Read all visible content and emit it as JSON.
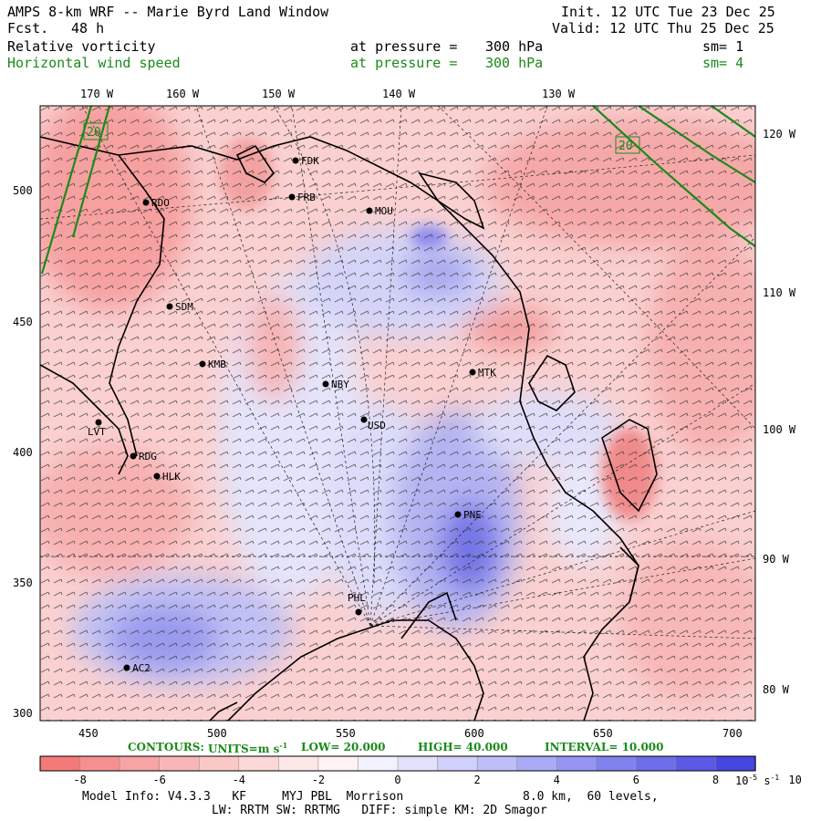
{
  "header": {
    "title": "AMPS 8-km WRF -- Marie Byrd Land Window",
    "fcst_label": "Fcst.",
    "fcst_value": "48 h",
    "init": "Init. 12 UTC Tue 23 Dec 25",
    "valid": "Valid: 12 UTC Thu 25 Dec 25",
    "field1": {
      "name": "Relative vorticity",
      "pressure_label": "at pressure =",
      "pressure": "300 hPa",
      "sm": "sm= 1"
    },
    "field2": {
      "name": "Horizontal wind speed",
      "pressure_label": "at pressure =",
      "pressure": "300 hPa",
      "sm": "sm= 4"
    }
  },
  "map": {
    "top_lon_labels": [
      "170 W",
      "160 W",
      "150 W",
      "140 W",
      "130 W"
    ],
    "right_lon_labels": [
      "120 W",
      "110 W",
      "100 W",
      "90 W",
      "80 W"
    ],
    "left_axis_ticks": [
      "500",
      "450",
      "400",
      "350",
      "300"
    ],
    "bottom_axis_ticks": [
      "450",
      "500",
      "550",
      "600",
      "650",
      "700"
    ],
    "contour_labels": [
      "20",
      "20"
    ],
    "stations": [
      {
        "id": "FDK"
      },
      {
        "id": "FRB"
      },
      {
        "id": "MOU"
      },
      {
        "id": "RDO"
      },
      {
        "id": "SDM"
      },
      {
        "id": "KMB"
      },
      {
        "id": "NBY"
      },
      {
        "id": "MTK"
      },
      {
        "id": "USD"
      },
      {
        "id": "LVT"
      },
      {
        "id": "RDG"
      },
      {
        "id": "HLK"
      },
      {
        "id": "PNE"
      },
      {
        "id": "PHL"
      },
      {
        "id": "AC2"
      }
    ]
  },
  "contours": {
    "label": "CONTOURS:",
    "units": "UNITS=m s",
    "units_sup": "-1",
    "low": "LOW= 20.000",
    "high": "HIGH= 40.000",
    "interval": "INTERVAL= 10.000"
  },
  "colorbar": {
    "ticks": [
      "-8",
      "-6",
      "-4",
      "-2",
      "0",
      "2",
      "4",
      "6",
      "8",
      "10"
    ],
    "unit": "10",
    "unit_exp": "-5",
    "unit_suffix": "s",
    "unit_suffix_exp": "-1",
    "colors": [
      "#f47a7a",
      "#f69090",
      "#f8a4a4",
      "#f9b6b6",
      "#fbc8c8",
      "#fcd8d8",
      "#fde6e6",
      "#fef2f2",
      "#f2f2fe",
      "#e2e2fc",
      "#d0d0fa",
      "#bebef8",
      "#aaaaf6",
      "#9696f2",
      "#8282ee",
      "#6e6eea",
      "#5a5ae6",
      "#4646e0"
    ]
  },
  "footer": {
    "line1_left": "Model Info: V4.3.3   KF     MYJ PBL  Morrison",
    "line1_right": "8.0 km,  60 levels,",
    "line2": "LW: RRTM SW: RRTMG   DIFF: simple KM: 2D Smagor"
  }
}
